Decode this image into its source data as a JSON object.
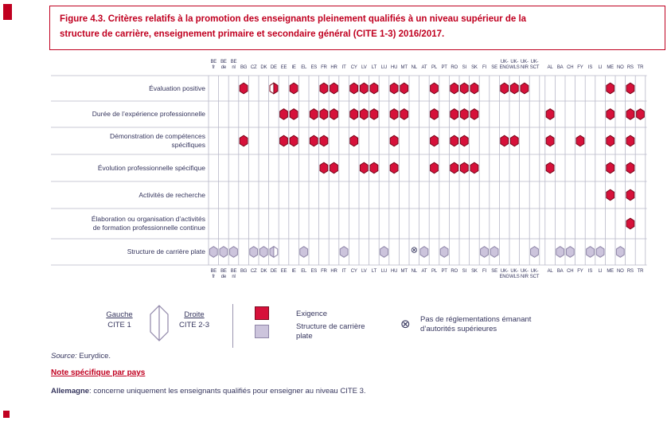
{
  "page": {
    "title_line1": "Figure 4.3. Critères relatifs à la promotion des enseignants pleinement qualifiés à un niveau supérieur de la",
    "title_line2": "structure de carrière, enseignement primaire et secondaire général (CITE 1-3) 2016/2017.",
    "source_label": "Source:",
    "source_value": "Eurydice.",
    "note_title": "Note spécifique par pays",
    "note_country": "Allemagne",
    "note_text": ": concerne uniquement les enseignants qualifiés pour enseigner au niveau CITE 3."
  },
  "legend": {
    "left_label": "Gauche",
    "left_sub": "CITE 1",
    "right_label": "Droite",
    "right_sub": "CITE 2-3",
    "requirement_label": "Exigence",
    "flat_label_line1": "Structure de carrière",
    "flat_label_line2": "plate",
    "no_regulation_symbol": "⊗",
    "no_regulation_line1": "Pas de réglementations émanant",
    "no_regulation_line2": "d’autorités supérieures"
  },
  "colors": {
    "requirement": "#D6113A",
    "requirement_border": "#7A0A1E",
    "flat": "#CCC4DC",
    "flat_border": "#8F86A8",
    "title_red": "#C00020",
    "text_blue": "#36365E",
    "grid": "#B8B8C8"
  },
  "chart_data": {
    "type": "table",
    "title": "Critères relatifs à la promotion des enseignants pleinement qualifiés à un niveau supérieur de la structure de carrière, CITE 1-3, 2016/2017",
    "marker_semantics": "hexagon split vertically: left half = CITE 1, right half = CITE 2-3; red = exigence; lavande = structure de carrière plate; ⊗ = pas de réglementations émanant d’autorités supérieures",
    "eu_count": 33,
    "countries": [
      {
        "code": "BE fr",
        "lines": [
          "BE",
          "fr"
        ]
      },
      {
        "code": "BE de",
        "lines": [
          "BE",
          "de"
        ]
      },
      {
        "code": "BE nl",
        "lines": [
          "BE",
          "nl"
        ]
      },
      {
        "code": "BG",
        "lines": [
          "BG"
        ]
      },
      {
        "code": "CZ",
        "lines": [
          "CZ"
        ]
      },
      {
        "code": "DK",
        "lines": [
          "DK"
        ]
      },
      {
        "code": "DE",
        "lines": [
          "DE"
        ]
      },
      {
        "code": "EE",
        "lines": [
          "EE"
        ]
      },
      {
        "code": "IE",
        "lines": [
          "IE"
        ]
      },
      {
        "code": "EL",
        "lines": [
          "EL"
        ]
      },
      {
        "code": "ES",
        "lines": [
          "ES"
        ]
      },
      {
        "code": "FR",
        "lines": [
          "FR"
        ]
      },
      {
        "code": "HR",
        "lines": [
          "HR"
        ]
      },
      {
        "code": "IT",
        "lines": [
          "IT"
        ]
      },
      {
        "code": "CY",
        "lines": [
          "CY"
        ]
      },
      {
        "code": "LV",
        "lines": [
          "LV"
        ]
      },
      {
        "code": "LT",
        "lines": [
          "LT"
        ]
      },
      {
        "code": "LU",
        "lines": [
          "LU"
        ]
      },
      {
        "code": "HU",
        "lines": [
          "HU"
        ]
      },
      {
        "code": "MT",
        "lines": [
          "MT"
        ]
      },
      {
        "code": "NL",
        "lines": [
          "NL"
        ]
      },
      {
        "code": "AT",
        "lines": [
          "AT"
        ]
      },
      {
        "code": "PL",
        "lines": [
          "PL"
        ]
      },
      {
        "code": "PT",
        "lines": [
          "PT"
        ]
      },
      {
        "code": "RO",
        "lines": [
          "RO"
        ]
      },
      {
        "code": "SI",
        "lines": [
          "SI"
        ]
      },
      {
        "code": "SK",
        "lines": [
          "SK"
        ]
      },
      {
        "code": "FI",
        "lines": [
          "FI"
        ]
      },
      {
        "code": "SE",
        "lines": [
          "SE"
        ]
      },
      {
        "code": "UK-ENG",
        "lines": [
          "UK-",
          "ENG"
        ]
      },
      {
        "code": "UK-WLS",
        "lines": [
          "UK-",
          "WLS"
        ]
      },
      {
        "code": "UK-NIR",
        "lines": [
          "UK-",
          "NIR"
        ]
      },
      {
        "code": "UK-SCT",
        "lines": [
          "UK-",
          "SCT"
        ]
      },
      {
        "code": "AL",
        "lines": [
          "AL"
        ]
      },
      {
        "code": "BA",
        "lines": [
          "BA"
        ]
      },
      {
        "code": "CH",
        "lines": [
          "CH"
        ]
      },
      {
        "code": "FY",
        "lines": [
          "FY"
        ]
      },
      {
        "code": "IS",
        "lines": [
          "IS"
        ]
      },
      {
        "code": "LI",
        "lines": [
          "LI"
        ]
      },
      {
        "code": "ME",
        "lines": [
          "ME"
        ]
      },
      {
        "code": "NO",
        "lines": [
          "NO"
        ]
      },
      {
        "code": "RS",
        "lines": [
          "RS"
        ]
      },
      {
        "code": "TR",
        "lines": [
          "TR"
        ]
      }
    ],
    "rows": [
      {
        "label": "Évaluation positive",
        "label_lines": [
          "Évaluation positive"
        ],
        "type": "requirement",
        "markers": [
          {
            "c": "BG"
          },
          {
            "c": "DE",
            "part": "right"
          },
          {
            "c": "IE"
          },
          {
            "c": "FR"
          },
          {
            "c": "HR"
          },
          {
            "c": "CY"
          },
          {
            "c": "LV"
          },
          {
            "c": "LT"
          },
          {
            "c": "HU"
          },
          {
            "c": "MT"
          },
          {
            "c": "PL"
          },
          {
            "c": "RO"
          },
          {
            "c": "SI"
          },
          {
            "c": "SK"
          },
          {
            "c": "UK-ENG"
          },
          {
            "c": "UK-WLS"
          },
          {
            "c": "UK-NIR"
          },
          {
            "c": "ME"
          },
          {
            "c": "RS"
          }
        ]
      },
      {
        "label": "Durée de l’expérience professionnelle",
        "label_lines": [
          "Durée de l’expérience professionnelle"
        ],
        "type": "requirement",
        "markers": [
          {
            "c": "EE"
          },
          {
            "c": "IE"
          },
          {
            "c": "ES"
          },
          {
            "c": "FR"
          },
          {
            "c": "HR"
          },
          {
            "c": "CY"
          },
          {
            "c": "LV"
          },
          {
            "c": "LT"
          },
          {
            "c": "HU"
          },
          {
            "c": "MT"
          },
          {
            "c": "PL"
          },
          {
            "c": "RO"
          },
          {
            "c": "SI"
          },
          {
            "c": "SK"
          },
          {
            "c": "AL"
          },
          {
            "c": "ME"
          },
          {
            "c": "RS"
          },
          {
            "c": "TR"
          }
        ]
      },
      {
        "label": "Démonstration de compétences spécifiques",
        "label_lines": [
          "Démonstration de compétences",
          "spécifiques"
        ],
        "type": "requirement",
        "markers": [
          {
            "c": "BG"
          },
          {
            "c": "EE"
          },
          {
            "c": "IE"
          },
          {
            "c": "ES"
          },
          {
            "c": "FR"
          },
          {
            "c": "CY"
          },
          {
            "c": "HU"
          },
          {
            "c": "PL"
          },
          {
            "c": "RO"
          },
          {
            "c": "SI"
          },
          {
            "c": "UK-ENG"
          },
          {
            "c": "UK-WLS"
          },
          {
            "c": "AL"
          },
          {
            "c": "FY"
          },
          {
            "c": "ME"
          },
          {
            "c": "RS"
          }
        ]
      },
      {
        "label": "Évolution professionnelle spécifique",
        "label_lines": [
          "Évolution professionnelle spécifique"
        ],
        "type": "requirement",
        "markers": [
          {
            "c": "FR"
          },
          {
            "c": "HR"
          },
          {
            "c": "LV"
          },
          {
            "c": "LT"
          },
          {
            "c": "HU"
          },
          {
            "c": "PL"
          },
          {
            "c": "RO"
          },
          {
            "c": "SI"
          },
          {
            "c": "SK"
          },
          {
            "c": "AL"
          },
          {
            "c": "ME"
          },
          {
            "c": "RS"
          }
        ]
      },
      {
        "label": "Activités de recherche",
        "label_lines": [
          "Activités de recherche"
        ],
        "type": "requirement",
        "markers": [
          {
            "c": "ME"
          },
          {
            "c": "RS"
          }
        ]
      },
      {
        "label": "Élaboration ou organisation d’activités de formation professionnelle continue",
        "label_lines": [
          "Élaboration ou organisation d’activités",
          "de formation professionnelle continue"
        ],
        "type": "requirement",
        "markers": [
          {
            "c": "RS"
          }
        ]
      },
      {
        "label": "Structure de carrière plate",
        "label_lines": [
          "Structure de carrière plate"
        ],
        "type": "flat",
        "markers": [
          {
            "c": "BE fr"
          },
          {
            "c": "BE de"
          },
          {
            "c": "BE nl"
          },
          {
            "c": "CZ"
          },
          {
            "c": "DK"
          },
          {
            "c": "DE",
            "part": "left"
          },
          {
            "c": "EL"
          },
          {
            "c": "IT"
          },
          {
            "c": "LU"
          },
          {
            "c": "AT"
          },
          {
            "c": "PT"
          },
          {
            "c": "FI"
          },
          {
            "c": "SE"
          },
          {
            "c": "UK-SCT"
          },
          {
            "c": "BA"
          },
          {
            "c": "CH"
          },
          {
            "c": "IS"
          },
          {
            "c": "LI"
          },
          {
            "c": "NO"
          }
        ],
        "no_regulation": [
          "NL"
        ]
      }
    ]
  }
}
